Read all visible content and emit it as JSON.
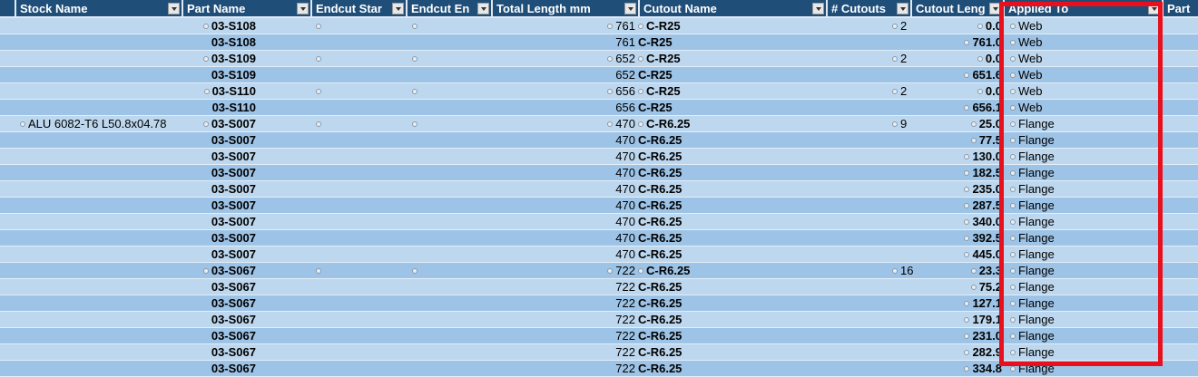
{
  "columns": [
    {
      "key": "stock",
      "label": "Stock Name"
    },
    {
      "key": "part",
      "label": "Part Name"
    },
    {
      "key": "endcut_start",
      "label": "Endcut Star"
    },
    {
      "key": "endcut_end",
      "label": "Endcut En"
    },
    {
      "key": "total",
      "label": "Total Length  mm"
    },
    {
      "key": "cutout",
      "label": "Cutout Name"
    },
    {
      "key": "ncut",
      "label": "# Cutouts"
    },
    {
      "key": "clen",
      "label": "Cutout Leng"
    },
    {
      "key": "applied",
      "label": "Applied To"
    },
    {
      "key": "partx",
      "label": "Part"
    }
  ],
  "highlight_color": "#e8101c",
  "header_color": "#1f4e79",
  "row_colors": [
    "#bdd7ee",
    "#9dc3e6"
  ],
  "rows": [
    {
      "stock": "",
      "part": "03-S108",
      "first": true,
      "total": "761",
      "cutout": "C-R25",
      "ncut": "2",
      "clen": "0.0",
      "applied": "Web"
    },
    {
      "stock": "",
      "part": "03-S108",
      "first": false,
      "total": "761",
      "cutout": "C-R25",
      "ncut": "",
      "clen": "761.0",
      "applied": "Web"
    },
    {
      "stock": "",
      "part": "03-S109",
      "first": true,
      "total": "652",
      "cutout": "C-R25",
      "ncut": "2",
      "clen": "0.0",
      "applied": "Web"
    },
    {
      "stock": "",
      "part": "03-S109",
      "first": false,
      "total": "652",
      "cutout": "C-R25",
      "ncut": "",
      "clen": "651.6",
      "applied": "Web"
    },
    {
      "stock": "",
      "part": "03-S110",
      "first": true,
      "total": "656",
      "cutout": "C-R25",
      "ncut": "2",
      "clen": "0.0",
      "applied": "Web"
    },
    {
      "stock": "",
      "part": "03-S110",
      "first": false,
      "total": "656",
      "cutout": "C-R25",
      "ncut": "",
      "clen": "656.1",
      "applied": "Web"
    },
    {
      "stock": "ALU 6082-T6 L50.8x04.78",
      "part": "03-S007",
      "first": true,
      "total": "470",
      "cutout": "C-R6.25",
      "ncut": "9",
      "clen": "25.0",
      "applied": "Flange"
    },
    {
      "stock": "",
      "part": "03-S007",
      "first": false,
      "total": "470",
      "cutout": "C-R6.25",
      "ncut": "",
      "clen": "77.5",
      "applied": "Flange"
    },
    {
      "stock": "",
      "part": "03-S007",
      "first": false,
      "total": "470",
      "cutout": "C-R6.25",
      "ncut": "",
      "clen": "130.0",
      "applied": "Flange"
    },
    {
      "stock": "",
      "part": "03-S007",
      "first": false,
      "total": "470",
      "cutout": "C-R6.25",
      "ncut": "",
      "clen": "182.5",
      "applied": "Flange"
    },
    {
      "stock": "",
      "part": "03-S007",
      "first": false,
      "total": "470",
      "cutout": "C-R6.25",
      "ncut": "",
      "clen": "235.0",
      "applied": "Flange"
    },
    {
      "stock": "",
      "part": "03-S007",
      "first": false,
      "total": "470",
      "cutout": "C-R6.25",
      "ncut": "",
      "clen": "287.5",
      "applied": "Flange"
    },
    {
      "stock": "",
      "part": "03-S007",
      "first": false,
      "total": "470",
      "cutout": "C-R6.25",
      "ncut": "",
      "clen": "340.0",
      "applied": "Flange"
    },
    {
      "stock": "",
      "part": "03-S007",
      "first": false,
      "total": "470",
      "cutout": "C-R6.25",
      "ncut": "",
      "clen": "392.5",
      "applied": "Flange"
    },
    {
      "stock": "",
      "part": "03-S007",
      "first": false,
      "total": "470",
      "cutout": "C-R6.25",
      "ncut": "",
      "clen": "445.0",
      "applied": "Flange"
    },
    {
      "stock": "",
      "part": "03-S067",
      "first": true,
      "total": "722",
      "cutout": "C-R6.25",
      "ncut": "16",
      "clen": "23.3",
      "applied": "Flange"
    },
    {
      "stock": "",
      "part": "03-S067",
      "first": false,
      "total": "722",
      "cutout": "C-R6.25",
      "ncut": "",
      "clen": "75.2",
      "applied": "Flange"
    },
    {
      "stock": "",
      "part": "03-S067",
      "first": false,
      "total": "722",
      "cutout": "C-R6.25",
      "ncut": "",
      "clen": "127.1",
      "applied": "Flange"
    },
    {
      "stock": "",
      "part": "03-S067",
      "first": false,
      "total": "722",
      "cutout": "C-R6.25",
      "ncut": "",
      "clen": "179.1",
      "applied": "Flange"
    },
    {
      "stock": "",
      "part": "03-S067",
      "first": false,
      "total": "722",
      "cutout": "C-R6.25",
      "ncut": "",
      "clen": "231.0",
      "applied": "Flange"
    },
    {
      "stock": "",
      "part": "03-S067",
      "first": false,
      "total": "722",
      "cutout": "C-R6.25",
      "ncut": "",
      "clen": "282.9",
      "applied": "Flange"
    },
    {
      "stock": "",
      "part": "03-S067",
      "first": false,
      "total": "722",
      "cutout": "C-R6.25",
      "ncut": "",
      "clen": "334.8",
      "applied": "Flange"
    }
  ]
}
